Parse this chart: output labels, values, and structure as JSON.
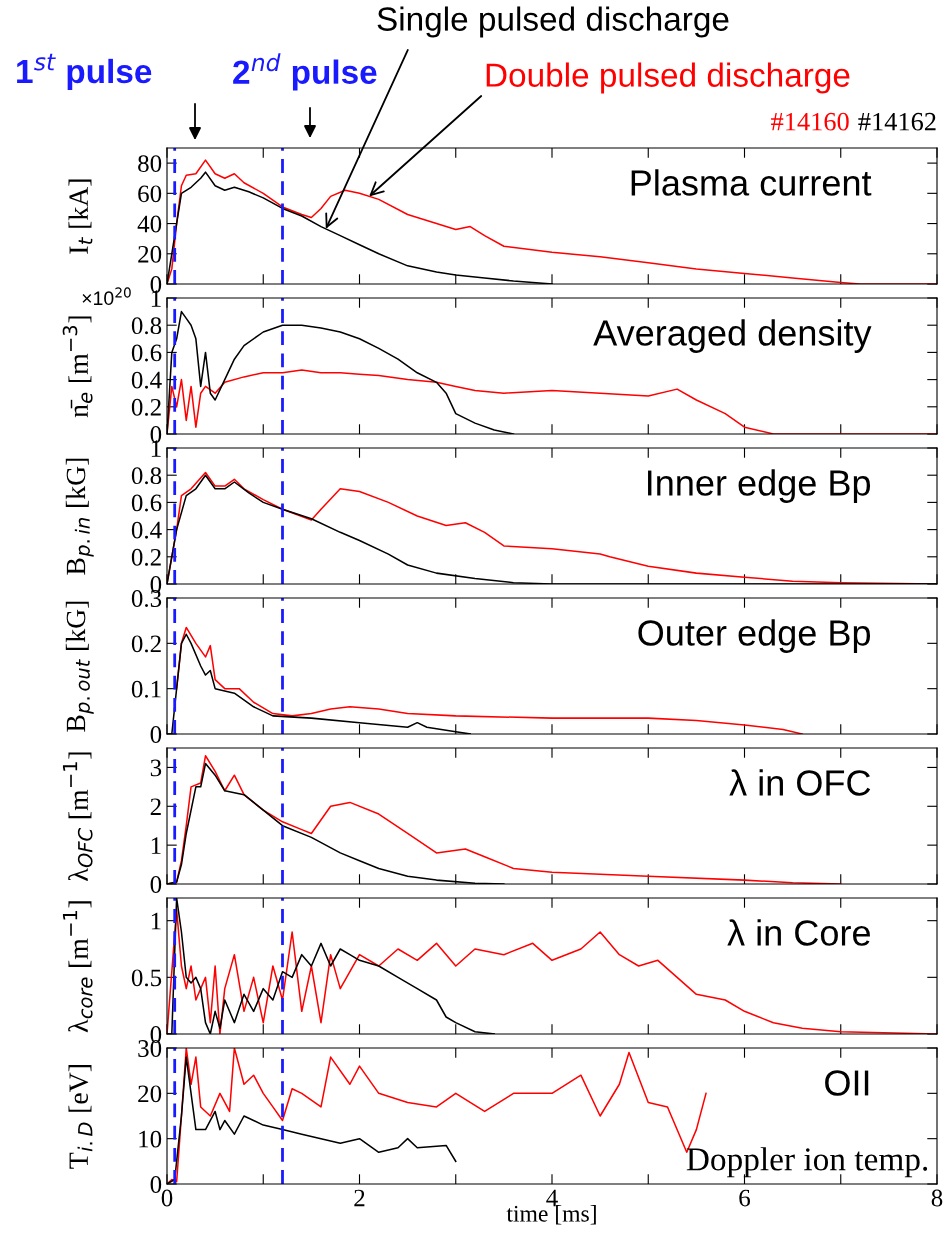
{
  "chart_data": [
    {
      "type": "line",
      "title": "Plasma current",
      "ylabel": "I$_{t}$ [kA]",
      "xlim": [
        0,
        8
      ],
      "ylim": [
        0,
        90
      ],
      "yticks": [
        0,
        20,
        40,
        60,
        80
      ],
      "xticks": [
        0,
        {
          "value": 1,
          "label": null
        },
        2,
        {
          "value": 3,
          "label": null
        },
        4,
        {
          "value": 5,
          "label": null
        },
        6,
        {
          "value": 7,
          "label": null
        },
        8
      ],
      "tick_labels": "y",
      "grid": false,
      "legend": false,
      "annotations": [
        "1$^{st}$ pulse",
        "2$^{nd}$ pulse",
        {
          "text": "Single pulsed discharge",
          "x": 1.65,
          "y": 36.5
        },
        {
          "text": "Double pulsed discharge",
          "x": 2.1,
          "y": 58
        }
      ],
      "ref_lines": [
        {
          "axis": "x",
          "value": 0.08,
          "color": "#1a1aff",
          "line_style": "dashed"
        },
        {
          "axis": "x",
          "value": 1.2,
          "color": "#1a1aff",
          "line_style": "dashed"
        }
      ],
      "series": [
        {
          "name": "#14160",
          "color": "#ff0000",
          "x": [
            0,
            0.05,
            0.1,
            0.15,
            0.2,
            0.3,
            0.4,
            0.5,
            0.6,
            0.7,
            0.8,
            1.0,
            1.2,
            1.4,
            1.5,
            1.6,
            1.7,
            1.85,
            2.0,
            2.2,
            2.5,
            2.8,
            3.0,
            3.15,
            3.3,
            3.5,
            4.0,
            4.5,
            5.0,
            5.5,
            6.0,
            6.5,
            7.0,
            7.2,
            8.0
          ],
          "values": [
            0,
            10,
            40,
            65,
            72,
            73,
            82,
            73,
            70,
            73,
            67,
            60,
            51,
            46,
            44,
            50,
            58,
            62,
            60,
            56,
            46,
            40,
            36,
            38,
            32,
            25,
            21,
            18,
            14,
            10,
            7,
            4,
            1,
            0,
            0
          ]
        },
        {
          "name": "#14162",
          "color": "#000000",
          "x": [
            0,
            0.1,
            0.15,
            0.25,
            0.35,
            0.4,
            0.5,
            0.6,
            0.7,
            0.85,
            1.0,
            1.2,
            1.4,
            1.6,
            1.8,
            2.0,
            2.2,
            2.5,
            2.8,
            3.0,
            3.3,
            3.6,
            3.9,
            4.0
          ],
          "values": [
            0,
            40,
            60,
            64,
            70,
            74,
            65,
            62,
            64,
            61,
            57,
            50,
            45,
            38,
            32,
            26,
            20,
            12,
            8,
            6,
            4,
            2,
            0.5,
            0
          ]
        }
      ]
    },
    {
      "type": "line",
      "title": "Averaged density",
      "ylabel": "n̄$_{e}$ [m$^{−3}$]",
      "xlim": [
        0,
        8
      ],
      "ylim": [
        0,
        1
      ],
      "yticks": [
        0,
        0.2,
        0.4,
        0.6,
        0.8,
        1
      ],
      "xticks": [
        0,
        {
          "value": 1,
          "label": null
        },
        2,
        {
          "value": 3,
          "label": null
        },
        4,
        {
          "value": 5,
          "label": null
        },
        6,
        {
          "value": 7,
          "label": null
        },
        8
      ],
      "tick_labels": "y",
      "grid": false,
      "legend": false,
      "annotations": [
        "×10$^{20}$"
      ],
      "ref_lines": [
        {
          "axis": "x",
          "value": 0.08,
          "color": "#1a1aff",
          "line_style": "dashed"
        },
        {
          "axis": "x",
          "value": 1.2,
          "color": "#1a1aff",
          "line_style": "dashed"
        }
      ],
      "series": [
        {
          "color": "#ff0000",
          "x": [
            0,
            0.05,
            0.1,
            0.15,
            0.2,
            0.25,
            0.3,
            0.35,
            0.4,
            0.5,
            0.6,
            0.8,
            1.0,
            1.2,
            1.4,
            1.6,
            1.8,
            2.0,
            2.2,
            2.5,
            2.8,
            3.0,
            3.2,
            3.5,
            4.0,
            4.5,
            5.0,
            5.3,
            5.5,
            5.8,
            6.0,
            6.3,
            8.0
          ],
          "values": [
            0,
            0.35,
            0.2,
            0.4,
            0.1,
            0.35,
            0.05,
            0.3,
            0.35,
            0.3,
            0.38,
            0.42,
            0.45,
            0.45,
            0.47,
            0.45,
            0.45,
            0.44,
            0.43,
            0.4,
            0.38,
            0.35,
            0.32,
            0.3,
            0.32,
            0.3,
            0.28,
            0.33,
            0.25,
            0.15,
            0.05,
            0,
            0
          ]
        },
        {
          "color": "#000000",
          "x": [
            0,
            0.05,
            0.1,
            0.15,
            0.2,
            0.25,
            0.3,
            0.35,
            0.4,
            0.45,
            0.5,
            0.6,
            0.7,
            0.8,
            1.0,
            1.2,
            1.4,
            1.6,
            1.8,
            2.0,
            2.2,
            2.4,
            2.6,
            2.8,
            2.9,
            3.0,
            3.2,
            3.4,
            3.6
          ],
          "values": [
            0,
            0.6,
            0.7,
            0.9,
            0.85,
            0.8,
            0.7,
            0.35,
            0.6,
            0.3,
            0.25,
            0.4,
            0.55,
            0.65,
            0.75,
            0.8,
            0.8,
            0.78,
            0.75,
            0.7,
            0.63,
            0.55,
            0.45,
            0.38,
            0.3,
            0.15,
            0.08,
            0.03,
            0
          ]
        }
      ]
    },
    {
      "type": "line",
      "title": "Inner edge Bp",
      "ylabel": "B$_{p.in}$ [kG]",
      "xlim": [
        0,
        8
      ],
      "ylim": [
        0,
        1
      ],
      "yticks": [
        0,
        0.2,
        0.4,
        0.6,
        0.8,
        1
      ],
      "xticks": [
        0,
        {
          "value": 1,
          "label": null
        },
        2,
        {
          "value": 3,
          "label": null
        },
        4,
        {
          "value": 5,
          "label": null
        },
        6,
        {
          "value": 7,
          "label": null
        },
        8
      ],
      "tick_labels": "y",
      "grid": false,
      "legend": false,
      "ref_lines": [
        {
          "axis": "x",
          "value": 0.08,
          "color": "#1a1aff",
          "line_style": "dashed"
        },
        {
          "axis": "x",
          "value": 1.2,
          "color": "#1a1aff",
          "line_style": "dashed"
        }
      ],
      "series": [
        {
          "color": "#ff0000",
          "x": [
            0,
            0.1,
            0.15,
            0.25,
            0.4,
            0.5,
            0.6,
            0.7,
            0.8,
            1.0,
            1.2,
            1.5,
            1.6,
            1.8,
            2.0,
            2.3,
            2.6,
            2.9,
            3.1,
            3.3,
            3.5,
            4.0,
            4.5,
            4.6,
            5.0,
            5.5,
            6.0,
            6.5,
            7.0,
            8.0
          ],
          "values": [
            0,
            0.4,
            0.65,
            0.7,
            0.82,
            0.72,
            0.72,
            0.77,
            0.7,
            0.62,
            0.55,
            0.47,
            0.55,
            0.7,
            0.68,
            0.6,
            0.5,
            0.43,
            0.45,
            0.38,
            0.28,
            0.26,
            0.22,
            0.2,
            0.13,
            0.08,
            0.05,
            0.02,
            0.01,
            0
          ]
        },
        {
          "color": "#000000",
          "x": [
            0,
            0.1,
            0.2,
            0.3,
            0.4,
            0.5,
            0.6,
            0.7,
            0.85,
            1.0,
            1.2,
            1.5,
            1.8,
            2.0,
            2.3,
            2.5,
            2.8,
            3.2,
            3.6,
            4.0,
            8.0
          ],
          "values": [
            0,
            0.4,
            0.65,
            0.7,
            0.8,
            0.7,
            0.7,
            0.75,
            0.67,
            0.6,
            0.55,
            0.48,
            0.38,
            0.32,
            0.22,
            0.14,
            0.08,
            0.04,
            0.01,
            0,
            0
          ]
        }
      ]
    },
    {
      "type": "line",
      "title": "Outer edge Bp",
      "ylabel": "B$_{p.out}$ [kG]",
      "xlim": [
        0,
        8
      ],
      "ylim": [
        0,
        0.3
      ],
      "yticks": [
        0,
        0.1,
        0.2,
        0.3
      ],
      "xticks": [
        0,
        {
          "value": 1,
          "label": null
        },
        2,
        {
          "value": 3,
          "label": null
        },
        4,
        {
          "value": 5,
          "label": null
        },
        6,
        {
          "value": 7,
          "label": null
        },
        8
      ],
      "tick_labels": "y",
      "grid": false,
      "legend": false,
      "ref_lines": [
        {
          "axis": "x",
          "value": 0.08,
          "color": "#1a1aff",
          "line_style": "dashed"
        },
        {
          "axis": "x",
          "value": 1.2,
          "color": "#1a1aff",
          "line_style": "dashed"
        }
      ],
      "series": [
        {
          "color": "#ff0000",
          "x": [
            0.1,
            0.15,
            0.2,
            0.3,
            0.4,
            0.45,
            0.5,
            0.6,
            0.75,
            0.9,
            1.1,
            1.3,
            1.5,
            1.7,
            1.9,
            2.2,
            2.5,
            3.0,
            4.0,
            5.0,
            5.5,
            6.0,
            6.4,
            6.6
          ],
          "values": [
            0.1,
            0.2,
            0.235,
            0.2,
            0.17,
            0.195,
            0.12,
            0.1,
            0.1,
            0.07,
            0.045,
            0.04,
            0.045,
            0.055,
            0.06,
            0.055,
            0.045,
            0.04,
            0.035,
            0.035,
            0.03,
            0.02,
            0.01,
            0
          ]
        },
        {
          "color": "#000000",
          "x": [
            0,
            0.05,
            0.1,
            0.15,
            0.2,
            0.25,
            0.35,
            0.4,
            0.45,
            0.5,
            0.7,
            0.9,
            1.1,
            1.5,
            2.0,
            2.5,
            2.6,
            2.7,
            3.0,
            3.15
          ],
          "values": [
            0,
            0,
            0.1,
            0.2,
            0.22,
            0.2,
            0.15,
            0.13,
            0.14,
            0.1,
            0.09,
            0.06,
            0.04,
            0.035,
            0.025,
            0.015,
            0.025,
            0.015,
            0.005,
            0
          ]
        }
      ]
    },
    {
      "type": "line",
      "title": "λ in OFC",
      "ylabel": "λ$_{OFC}$ [m$^{−1}$]",
      "xlim": [
        0,
        8
      ],
      "ylim": [
        0,
        3.5
      ],
      "yticks": [
        0,
        1,
        2,
        3
      ],
      "xticks": [
        0,
        {
          "value": 1,
          "label": null
        },
        2,
        {
          "value": 3,
          "label": null
        },
        4,
        {
          "value": 5,
          "label": null
        },
        6,
        {
          "value": 7,
          "label": null
        },
        8
      ],
      "tick_labels": "y",
      "grid": false,
      "legend": false,
      "ref_lines": [
        {
          "axis": "x",
          "value": 0.08,
          "color": "#1a1aff",
          "line_style": "dashed"
        },
        {
          "axis": "x",
          "value": 1.2,
          "color": "#1a1aff",
          "line_style": "dashed"
        }
      ],
      "series": [
        {
          "color": "#ff0000",
          "x": [
            0,
            0.1,
            0.15,
            0.2,
            0.25,
            0.35,
            0.4,
            0.5,
            0.6,
            0.7,
            0.8,
            1.0,
            1.2,
            1.4,
            1.5,
            1.7,
            1.9,
            2.2,
            2.5,
            2.8,
            3.1,
            3.3,
            3.6,
            4.0,
            5.0,
            6.0,
            6.5,
            7.0
          ],
          "values": [
            0,
            0.05,
            0.6,
            1.5,
            2.5,
            2.6,
            3.3,
            2.9,
            2.4,
            2.8,
            2.3,
            1.9,
            1.6,
            1.4,
            1.3,
            2.0,
            2.1,
            1.8,
            1.3,
            0.8,
            0.9,
            0.7,
            0.4,
            0.3,
            0.2,
            0.1,
            0.03,
            0
          ]
        },
        {
          "color": "#000000",
          "x": [
            0,
            0.1,
            0.15,
            0.2,
            0.3,
            0.35,
            0.4,
            0.5,
            0.6,
            0.8,
            0.9,
            1.0,
            1.2,
            1.5,
            1.8,
            2.0,
            2.2,
            2.5,
            2.8,
            3.2,
            3.5
          ],
          "values": [
            0,
            0.05,
            0.5,
            1.3,
            2.5,
            2.5,
            3.1,
            2.8,
            2.4,
            2.3,
            2.1,
            1.9,
            1.5,
            1.2,
            0.8,
            0.6,
            0.4,
            0.2,
            0.1,
            0.02,
            0
          ]
        }
      ]
    },
    {
      "type": "line",
      "title": "λ in Core",
      "ylabel": "λ$_{core}$ [m$^{−1}$]",
      "xlim": [
        0,
        8
      ],
      "ylim": [
        0,
        1.2
      ],
      "yticks": [
        0,
        0.5,
        1
      ],
      "xticks": [
        0,
        {
          "value": 1,
          "label": null
        },
        2,
        {
          "value": 3,
          "label": null
        },
        4,
        {
          "value": 5,
          "label": null
        },
        6,
        {
          "value": 7,
          "label": null
        },
        8
      ],
      "tick_labels": "y",
      "grid": false,
      "legend": false,
      "ref_lines": [
        {
          "axis": "x",
          "value": 0.08,
          "color": "#1a1aff",
          "line_style": "dashed"
        },
        {
          "axis": "x",
          "value": 1.2,
          "color": "#1a1aff",
          "line_style": "dashed"
        }
      ],
      "series": [
        {
          "color": "#ff0000",
          "x": [
            0,
            0.1,
            0.15,
            0.2,
            0.25,
            0.3,
            0.4,
            0.45,
            0.5,
            0.55,
            0.6,
            0.7,
            0.8,
            0.9,
            1.0,
            1.1,
            1.2,
            1.3,
            1.4,
            1.5,
            1.6,
            1.7,
            1.8,
            2.0,
            2.2,
            2.4,
            2.6,
            2.8,
            3.0,
            3.2,
            3.5,
            3.8,
            4.0,
            4.3,
            4.5,
            4.7,
            4.9,
            5.1,
            5.3,
            5.5,
            5.8,
            6.0,
            6.3,
            6.6,
            7.0,
            8.0
          ],
          "values": [
            0,
            1.1,
            0.6,
            0.4,
            0.6,
            0.3,
            0.5,
            0.1,
            0.6,
            0,
            0.4,
            0.7,
            0.2,
            0.5,
            0.1,
            0.6,
            0.3,
            0.9,
            0.2,
            0.6,
            0.1,
            0.7,
            0.4,
            0.7,
            0.6,
            0.75,
            0.65,
            0.8,
            0.6,
            0.75,
            0.7,
            0.8,
            0.65,
            0.75,
            0.9,
            0.7,
            0.6,
            0.65,
            0.5,
            0.35,
            0.3,
            0.2,
            0.1,
            0.05,
            0.02,
            0
          ]
        },
        {
          "color": "#000000",
          "x": [
            0,
            0.05,
            0.1,
            0.15,
            0.2,
            0.25,
            0.3,
            0.35,
            0.4,
            0.45,
            0.5,
            0.55,
            0.6,
            0.7,
            0.8,
            0.9,
            1.0,
            1.1,
            1.2,
            1.3,
            1.4,
            1.5,
            1.6,
            1.7,
            1.8,
            1.9,
            2.0,
            2.2,
            2.4,
            2.6,
            2.8,
            2.9,
            3.0,
            3.2,
            3.4
          ],
          "values": [
            0,
            0,
            1.2,
            0.9,
            0.5,
            0.45,
            0.5,
            0.4,
            0.1,
            0,
            0.2,
            0.05,
            0.3,
            0.1,
            0.35,
            0.2,
            0.4,
            0.3,
            0.55,
            0.5,
            0.7,
            0.6,
            0.8,
            0.6,
            0.75,
            0.7,
            0.65,
            0.6,
            0.5,
            0.4,
            0.3,
            0.15,
            0.1,
            0.02,
            0
          ]
        }
      ]
    },
    {
      "type": "line",
      "title": "OII",
      "ylabel": "T$_{i.D}$ [eV]",
      "xlabel": "time [ms]",
      "xlim": [
        0,
        8
      ],
      "ylim": [
        0,
        30
      ],
      "yticks": [
        0,
        10,
        20,
        30
      ],
      "xticks": [
        0,
        {
          "value": 1,
          "label": null
        },
        2,
        {
          "value": 3,
          "label": null
        },
        4,
        {
          "value": 5,
          "label": null
        },
        6,
        {
          "value": 7,
          "label": null
        },
        8
      ],
      "grid": false,
      "legend": false,
      "annotations": [
        "Doppler ion temp."
      ],
      "ref_lines": [
        {
          "axis": "x",
          "value": 0.08,
          "color": "#1a1aff",
          "line_style": "dashed"
        },
        {
          "axis": "x",
          "value": 1.2,
          "color": "#1a1aff",
          "line_style": "dashed"
        }
      ],
      "series": [
        {
          "color": "#ff0000",
          "x": [
            0,
            0.05,
            0.1,
            0.15,
            0.2,
            0.25,
            0.3,
            0.35,
            0.45,
            0.55,
            0.65,
            0.7,
            0.8,
            0.9,
            1.0,
            1.1,
            1.2,
            1.3,
            1.4,
            1.6,
            1.7,
            1.9,
            2.0,
            2.2,
            2.5,
            2.8,
            3.0,
            3.3,
            3.6,
            4.0,
            4.3,
            4.5,
            4.7,
            4.8,
            5.0,
            5.2,
            5.4,
            5.5,
            5.6
          ],
          "values": [
            0,
            1,
            0.5,
            15,
            30,
            22,
            28,
            17,
            15,
            20,
            16,
            30,
            22,
            24,
            20,
            17,
            14,
            21,
            20,
            17,
            28,
            22,
            26,
            20,
            18,
            17,
            20,
            16,
            20,
            20,
            24,
            15,
            22,
            29,
            18,
            17,
            7,
            12,
            20
          ]
        },
        {
          "color": "#000000",
          "x": [
            0,
            0.08,
            0.15,
            0.2,
            0.25,
            0.3,
            0.4,
            0.5,
            0.55,
            0.6,
            0.7,
            0.8,
            1.0,
            1.2,
            1.4,
            1.6,
            1.8,
            2.0,
            2.2,
            2.4,
            2.5,
            2.6,
            2.9,
            3.0
          ],
          "values": [
            0,
            1,
            15,
            28,
            20,
            12,
            12,
            16,
            12,
            14,
            11,
            15,
            13,
            12,
            11,
            10,
            9,
            10,
            7,
            8,
            10,
            8,
            8.5,
            5
          ]
        }
      ]
    }
  ]
}
